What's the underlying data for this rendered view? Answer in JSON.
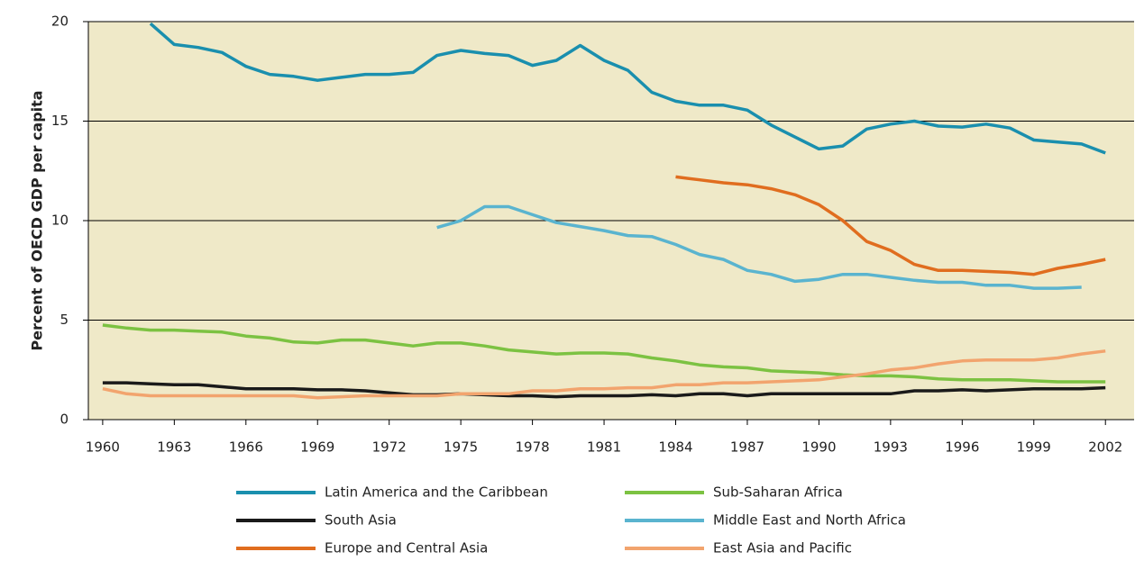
{
  "chart_data": {
    "type": "line",
    "y_label": "Percent of OECD GDP per capita",
    "x": [
      1960,
      1961,
      1962,
      1963,
      1964,
      1965,
      1966,
      1967,
      1968,
      1969,
      1970,
      1971,
      1972,
      1973,
      1974,
      1975,
      1976,
      1977,
      1978,
      1979,
      1980,
      1981,
      1982,
      1983,
      1984,
      1985,
      1986,
      1987,
      1988,
      1989,
      1990,
      1991,
      1992,
      1993,
      1994,
      1995,
      1996,
      1997,
      1998,
      1999,
      2000,
      2001,
      2002
    ],
    "xlim": [
      1959.4,
      2003.2
    ],
    "xticks": [
      1960,
      1963,
      1966,
      1969,
      1972,
      1975,
      1978,
      1981,
      1984,
      1987,
      1990,
      1993,
      1996,
      1999,
      2002
    ],
    "ylim": [
      0,
      20
    ],
    "yticks": [
      0,
      5,
      10,
      15,
      20
    ],
    "grid": true,
    "background": "#efe9c8",
    "series": [
      {
        "name": "Latin America and the Caribbean",
        "color": "#1a8fae",
        "values": [
          null,
          null,
          19.9,
          18.85,
          18.7,
          18.45,
          17.75,
          17.35,
          17.25,
          17.05,
          17.2,
          17.35,
          17.35,
          17.45,
          18.3,
          18.55,
          18.4,
          18.3,
          17.8,
          18.05,
          18.8,
          18.05,
          17.55,
          16.45,
          16.0,
          15.8,
          15.8,
          15.55,
          14.8,
          14.2,
          13.6,
          13.75,
          14.6,
          14.85,
          15.0,
          14.75,
          14.7,
          14.85,
          14.65,
          14.05,
          13.95,
          13.85,
          13.4
        ]
      },
      {
        "name": "South Asia",
        "color": "#1a1a1a",
        "values": [
          1.85,
          1.85,
          1.8,
          1.75,
          1.75,
          1.65,
          1.55,
          1.55,
          1.55,
          1.5,
          1.5,
          1.45,
          1.35,
          1.25,
          1.25,
          1.3,
          1.25,
          1.2,
          1.2,
          1.15,
          1.2,
          1.2,
          1.2,
          1.25,
          1.2,
          1.3,
          1.3,
          1.2,
          1.3,
          1.3,
          1.3,
          1.3,
          1.3,
          1.3,
          1.45,
          1.45,
          1.5,
          1.45,
          1.5,
          1.55,
          1.55,
          1.55,
          1.6
        ]
      },
      {
        "name": "Europe and Central Asia",
        "color": "#e06d1f",
        "values": [
          null,
          null,
          null,
          null,
          null,
          null,
          null,
          null,
          null,
          null,
          null,
          null,
          null,
          null,
          null,
          null,
          null,
          null,
          null,
          null,
          null,
          null,
          null,
          null,
          12.2,
          12.05,
          11.9,
          11.8,
          11.6,
          11.3,
          10.8,
          10.0,
          8.95,
          8.5,
          7.8,
          7.5,
          7.5,
          7.45,
          7.4,
          7.3,
          7.6,
          7.8,
          8.05
        ]
      },
      {
        "name": "Sub-Saharan Africa",
        "color": "#7cc242",
        "values": [
          4.75,
          4.6,
          4.5,
          4.5,
          4.45,
          4.4,
          4.2,
          4.1,
          3.9,
          3.85,
          4.0,
          4.0,
          3.85,
          3.7,
          3.85,
          3.85,
          3.7,
          3.5,
          3.4,
          3.3,
          3.35,
          3.35,
          3.3,
          3.1,
          2.95,
          2.75,
          2.65,
          2.6,
          2.45,
          2.4,
          2.35,
          2.25,
          2.2,
          2.2,
          2.15,
          2.05,
          2.0,
          2.0,
          2.0,
          1.95,
          1.9,
          1.9,
          1.9
        ]
      },
      {
        "name": "Middle East and North Africa",
        "color": "#5ab4cf",
        "values": [
          null,
          null,
          null,
          null,
          null,
          null,
          null,
          null,
          null,
          null,
          null,
          null,
          null,
          null,
          9.65,
          10.0,
          10.7,
          10.7,
          10.3,
          9.9,
          9.7,
          9.5,
          9.25,
          9.2,
          8.8,
          8.3,
          8.05,
          7.5,
          7.3,
          6.95,
          7.05,
          7.3,
          7.3,
          7.15,
          7.0,
          6.9,
          6.9,
          6.75,
          6.75,
          6.6,
          6.6,
          6.65,
          null
        ]
      },
      {
        "name": "East Asia and Pacific",
        "color": "#f2a46e",
        "values": [
          1.55,
          1.3,
          1.2,
          1.2,
          1.2,
          1.2,
          1.2,
          1.2,
          1.2,
          1.1,
          1.15,
          1.2,
          1.2,
          1.2,
          1.2,
          1.3,
          1.3,
          1.3,
          1.45,
          1.45,
          1.55,
          1.55,
          1.6,
          1.6,
          1.75,
          1.75,
          1.85,
          1.85,
          1.9,
          1.95,
          2.0,
          2.15,
          2.3,
          2.5,
          2.6,
          2.8,
          2.95,
          3.0,
          3.0,
          3.0,
          3.1,
          3.3,
          3.45
        ]
      }
    ]
  }
}
